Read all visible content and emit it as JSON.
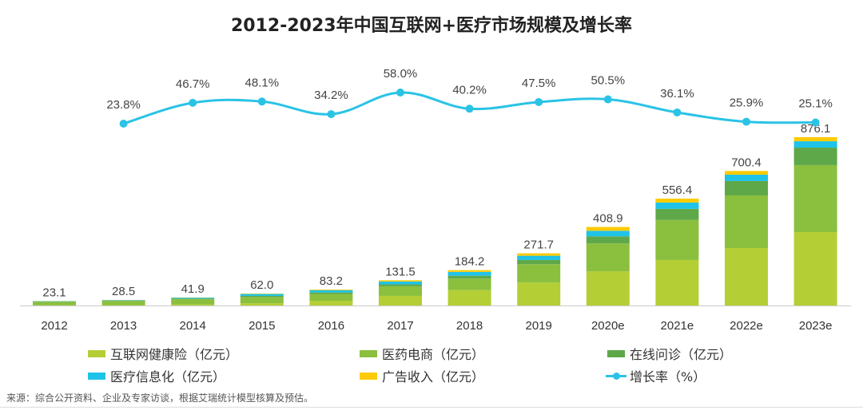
{
  "chart_data": {
    "type": "bar",
    "stacked": true,
    "title": "2012-2023年中国互联网+医疗市场规模及增长率",
    "categories": [
      "2012",
      "2013",
      "2014",
      "2015",
      "2016",
      "2017",
      "2018",
      "2019",
      "2020e",
      "2021e",
      "2022e",
      "2023e"
    ],
    "totals": [
      23.1,
      28.5,
      41.9,
      62.0,
      83.2,
      131.5,
      184.2,
      271.7,
      408.9,
      556.4,
      700.4,
      876.1
    ],
    "total_labels": [
      "23.1",
      "28.5",
      "41.9",
      "62.0",
      "83.2",
      "131.5",
      "184.2",
      "271.7",
      "408.9",
      "556.4",
      "700.4",
      "876.1"
    ],
    "series": [
      {
        "name": "互联网健康险（亿元）",
        "color": "#b3cf35",
        "values": [
          1,
          2,
          5,
          12,
          25,
          50,
          80,
          120,
          178,
          237,
          299,
          382
        ]
      },
      {
        "name": "医药电商（亿元）",
        "color": "#8bbf3e",
        "values": [
          18,
          22,
          28,
          32,
          35,
          50,
          60,
          95,
          145,
          208,
          274,
          349
        ]
      },
      {
        "name": "在线问诊（亿元）",
        "color": "#5fa84a",
        "values": [
          1,
          1,
          3,
          6,
          8,
          10,
          15,
          22,
          37,
          58,
          75,
          91
        ]
      },
      {
        "name": "医疗信息化（亿元）",
        "color": "#1fc3e8",
        "values": [
          3,
          3,
          5,
          10,
          12,
          15,
          20,
          22,
          29,
          33,
          33,
          33
        ]
      },
      {
        "name": "广告收入（亿元）",
        "color": "#fccb05",
        "values": [
          0.1,
          0.5,
          0.9,
          2,
          3.2,
          6.5,
          9.2,
          12.7,
          19.9,
          20.4,
          19.4,
          21.1
        ]
      }
    ],
    "line_series": {
      "name": "增长率（%）",
      "color": "#2ac3e6",
      "values": [
        null,
        23.8,
        46.7,
        48.1,
        34.2,
        58.0,
        40.2,
        47.5,
        50.5,
        36.1,
        25.9,
        25.1
      ],
      "labels": [
        null,
        "23.8%",
        "46.7%",
        "48.1%",
        "34.2%",
        "58.0%",
        "40.2%",
        "47.5%",
        "50.5%",
        "36.1%",
        "25.9%",
        "25.1%"
      ]
    },
    "ylim": [
      0,
      900
    ],
    "line_ylim": [
      0,
      100
    ],
    "legend_position": "bottom",
    "grid": false
  },
  "source": "来源：综合公开资料、企业及专家访谈，根据艾瑞统计模型核算及预估。"
}
